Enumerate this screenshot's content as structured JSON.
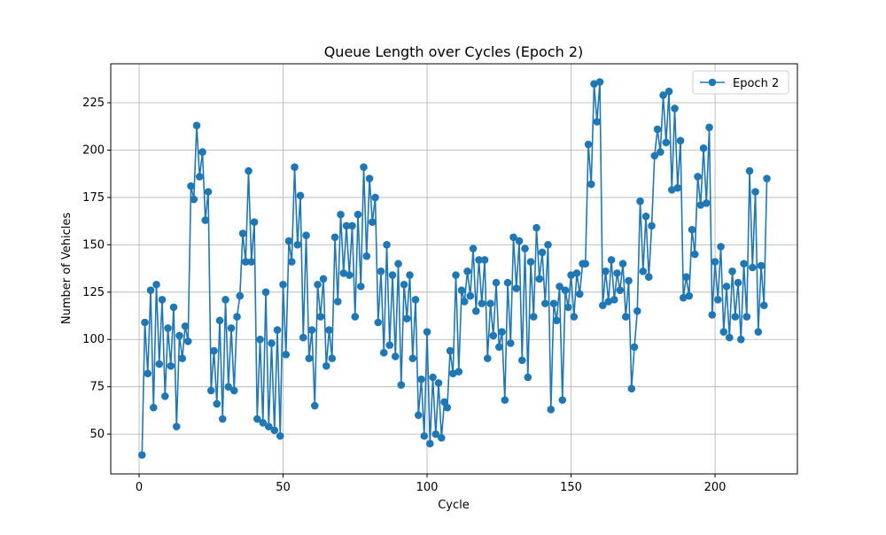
{
  "chart_data": {
    "type": "line",
    "title": "Queue Length over Cycles (Epoch 2)",
    "xlabel": "Cycle",
    "ylabel": "Number of Vehicles",
    "x": [
      1,
      2,
      3,
      4,
      5,
      6,
      7,
      8,
      9,
      10,
      11,
      12,
      13,
      14,
      15,
      16,
      17,
      18,
      19,
      20,
      21,
      22,
      23,
      24,
      25,
      26,
      27,
      28,
      29,
      30,
      31,
      32,
      33,
      34,
      35,
      36,
      37,
      38,
      39,
      40,
      41,
      42,
      43,
      44,
      45,
      46,
      47,
      48,
      49,
      50,
      51,
      52,
      53,
      54,
      55,
      56,
      57,
      58,
      59,
      60,
      61,
      62,
      63,
      64,
      65,
      66,
      67,
      68,
      69,
      70,
      71,
      72,
      73,
      74,
      75,
      76,
      77,
      78,
      79,
      80,
      81,
      82,
      83,
      84,
      85,
      86,
      87,
      88,
      89,
      90,
      91,
      92,
      93,
      94,
      95,
      96,
      97,
      98,
      99,
      100,
      101,
      102,
      103,
      104,
      105,
      106,
      107,
      108,
      109,
      110,
      111,
      112,
      113,
      114,
      115,
      116,
      117,
      118,
      119,
      120,
      121,
      122,
      123,
      124,
      125,
      126,
      127,
      128,
      129,
      130,
      131,
      132,
      133,
      134,
      135,
      136,
      137,
      138,
      139,
      140,
      141,
      142,
      143,
      144,
      145,
      146,
      147,
      148,
      149,
      150,
      151,
      152,
      153,
      154,
      155,
      156,
      157,
      158,
      159,
      160,
      161,
      162,
      163,
      164,
      165,
      166,
      167,
      168,
      169,
      170,
      171,
      172,
      173,
      174,
      175,
      176,
      177,
      178,
      179,
      180,
      181,
      182,
      183,
      184,
      185,
      186,
      187,
      188,
      189,
      190,
      191,
      192,
      193,
      194,
      195,
      196,
      197,
      198,
      199,
      200,
      201,
      202,
      203,
      204,
      205,
      206,
      207,
      208,
      209,
      210,
      211,
      212,
      213,
      214,
      215,
      216,
      217,
      218
    ],
    "series": [
      {
        "name": "Epoch 2",
        "color": "#1f77b4",
        "values": [
          39,
          109,
          82,
          126,
          64,
          129,
          87,
          121,
          70,
          106,
          86,
          117,
          54,
          102,
          90,
          107,
          99,
          181,
          174,
          213,
          186,
          199,
          163,
          178,
          73,
          94,
          66,
          110,
          58,
          121,
          75,
          106,
          73,
          112,
          123,
          156,
          141,
          189,
          141,
          162,
          58,
          100,
          56,
          125,
          54,
          98,
          52,
          105,
          49,
          129,
          92,
          152,
          141,
          191,
          150,
          176,
          101,
          155,
          90,
          105,
          65,
          129,
          112,
          132,
          86,
          105,
          90,
          154,
          120,
          166,
          135,
          160,
          134,
          160,
          112,
          166,
          128,
          191,
          144,
          185,
          162,
          175,
          109,
          136,
          93,
          150,
          97,
          134,
          91,
          140,
          76,
          129,
          111,
          134,
          90,
          121,
          60,
          79,
          49,
          104,
          45,
          80,
          50,
          77,
          48,
          67,
          64,
          94,
          82,
          134,
          83,
          126,
          120,
          136,
          123,
          148,
          115,
          142,
          119,
          142,
          90,
          119,
          102,
          130,
          96,
          104,
          68,
          130,
          98,
          154,
          127,
          152,
          89,
          148,
          80,
          141,
          112,
          159,
          132,
          146,
          119,
          150,
          63,
          119,
          110,
          128,
          68,
          126,
          117,
          134,
          112,
          135,
          124,
          140,
          140,
          203,
          182,
          235,
          215,
          236,
          118,
          136,
          120,
          142,
          121,
          135,
          126,
          140,
          112,
          131,
          74,
          96,
          115,
          173,
          136,
          165,
          133,
          160,
          197,
          211,
          199,
          229,
          204,
          231,
          179,
          222,
          180,
          205,
          122,
          133,
          123,
          158,
          145,
          186,
          171,
          201,
          172,
          212,
          113,
          141,
          121,
          149,
          104,
          128,
          101,
          136,
          112,
          130,
          100,
          140,
          112,
          189,
          138,
          178,
          104,
          139,
          118,
          185
        ]
      }
    ],
    "xlim": [
      -9.85,
      228.6
    ],
    "ylim": [
      29.0,
      245.6
    ],
    "xticks": [
      0,
      50,
      100,
      150,
      200
    ],
    "yticks": [
      50,
      75,
      100,
      125,
      150,
      175,
      200,
      225
    ],
    "grid": true,
    "legend": "upper right"
  }
}
